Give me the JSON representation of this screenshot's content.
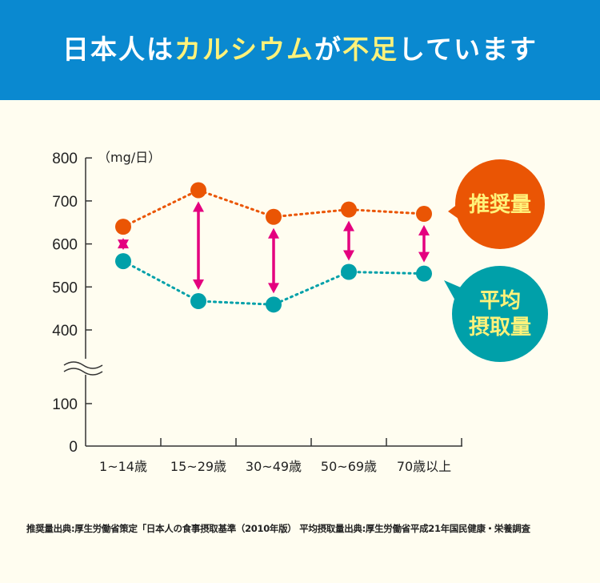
{
  "header": {
    "title_parts": [
      "日本人は",
      "カルシウム",
      "が",
      "不足",
      "しています"
    ]
  },
  "chart_data": {
    "type": "line",
    "unit_label": "（mg/日）",
    "categories": [
      "1~14歳",
      "15~29歳",
      "30~49歳",
      "50~69歳",
      "70歳以上"
    ],
    "y_ticks": [
      0,
      100,
      400,
      500,
      600,
      700,
      800
    ],
    "ylim": [
      0,
      800
    ],
    "axis_break": [
      100,
      400
    ],
    "series": [
      {
        "name": "推奨量",
        "values": [
          640,
          725,
          663,
          680,
          670
        ],
        "color": "#ea5504"
      },
      {
        "name": "平均摂取量",
        "values": [
          560,
          467,
          459,
          535,
          531
        ],
        "color": "#00a0a9"
      }
    ],
    "gap_arrow_color": "#e4007f"
  },
  "legend": {
    "recommended": "推奨量",
    "average_line1": "平均",
    "average_line2": "摂取量"
  },
  "footnote": "推奨量出典:厚生労働省策定「日本人の食事摂取基準（2010年版） 平均摂取量出典:厚生労働省平成21年国民健康・栄養調査"
}
